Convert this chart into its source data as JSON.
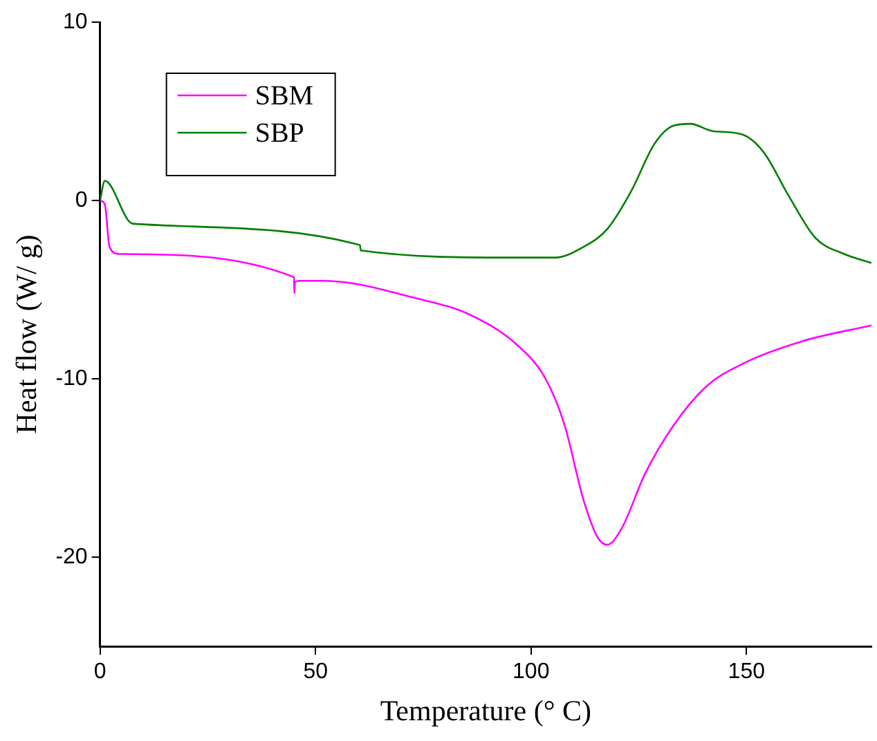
{
  "chart_data": {
    "type": "line",
    "xlabel": "Temperature (° C)",
    "ylabel": "Heat flow (W/ g)",
    "xlim": [
      0,
      179
    ],
    "xticks": [
      0,
      50,
      100,
      150
    ],
    "ylim": [
      -25,
      10
    ],
    "yticks": [
      -20,
      -10,
      0,
      10
    ],
    "grid": false,
    "legend": "top left",
    "marker": "none",
    "line_style": "solid",
    "series": [
      {
        "name": "SBM",
        "color": "#ff00ff",
        "x": [
          0,
          1.1,
          2.2,
          4.4,
          45,
          45.1,
          45.2,
          46.2,
          51.7,
          73.7,
          85.8,
          96.8,
          103.4,
          107.8,
          112.2,
          115.5,
          117.7,
          121,
          126.5,
          133.1,
          140.8,
          149.6,
          162.8,
          179
        ],
        "values": [
          0,
          -0.2,
          -2.6,
          -3.0,
          -4.3,
          -5.2,
          -4.6,
          -4.5,
          -4.5,
          -5.5,
          -6.4,
          -8.1,
          -10,
          -12.6,
          -16.8,
          -18.9,
          -19.3,
          -18.4,
          -15.3,
          -12.6,
          -10.4,
          -9.1,
          -7.9,
          -7.0
        ]
      },
      {
        "name": "SBP",
        "color": "#008000",
        "x": [
          0,
          1.1,
          7.6,
          60.3,
          60.5,
          95.7,
          105.6,
          112.2,
          117.7,
          123.2,
          128.7,
          133.1,
          137,
          142,
          149,
          154,
          159.7,
          166,
          172.7,
          179
        ],
        "values": [
          0,
          1.1,
          -1.3,
          -2.5,
          -2.8,
          -3.2,
          -3.2,
          -2.6,
          -1.6,
          0.5,
          3.2,
          4.2,
          4.3,
          3.9,
          3.7,
          2.7,
          0.3,
          -2.1,
          -3.0,
          -3.5
        ]
      }
    ]
  }
}
